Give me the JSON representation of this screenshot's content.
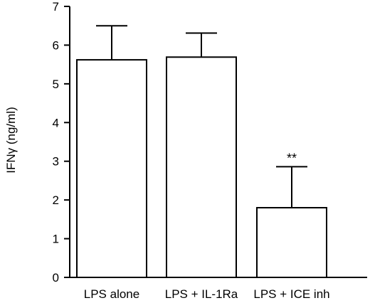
{
  "chart_data": {
    "type": "bar",
    "categories": [
      "LPS alone",
      "LPS + IL-1Ra",
      "LPS + ICE inh"
    ],
    "values": [
      5.62,
      5.69,
      1.8
    ],
    "errors": [
      0.88,
      0.62,
      1.06
    ],
    "title": "",
    "xlabel": "",
    "ylabel": "IFNγ (ng/ml)",
    "ylim": [
      0,
      7
    ],
    "yticks": [
      0,
      1,
      2,
      3,
      4,
      5,
      6,
      7
    ],
    "ytick_labels": [
      "0",
      "1",
      "2",
      "3",
      "4",
      "5",
      "6",
      "7"
    ],
    "annotations": [
      {
        "category": "LPS + ICE inh",
        "text": "**"
      }
    ],
    "bar_fill": "#ffffff",
    "bar_stroke": "#000000",
    "grid": false,
    "legend": "none"
  }
}
